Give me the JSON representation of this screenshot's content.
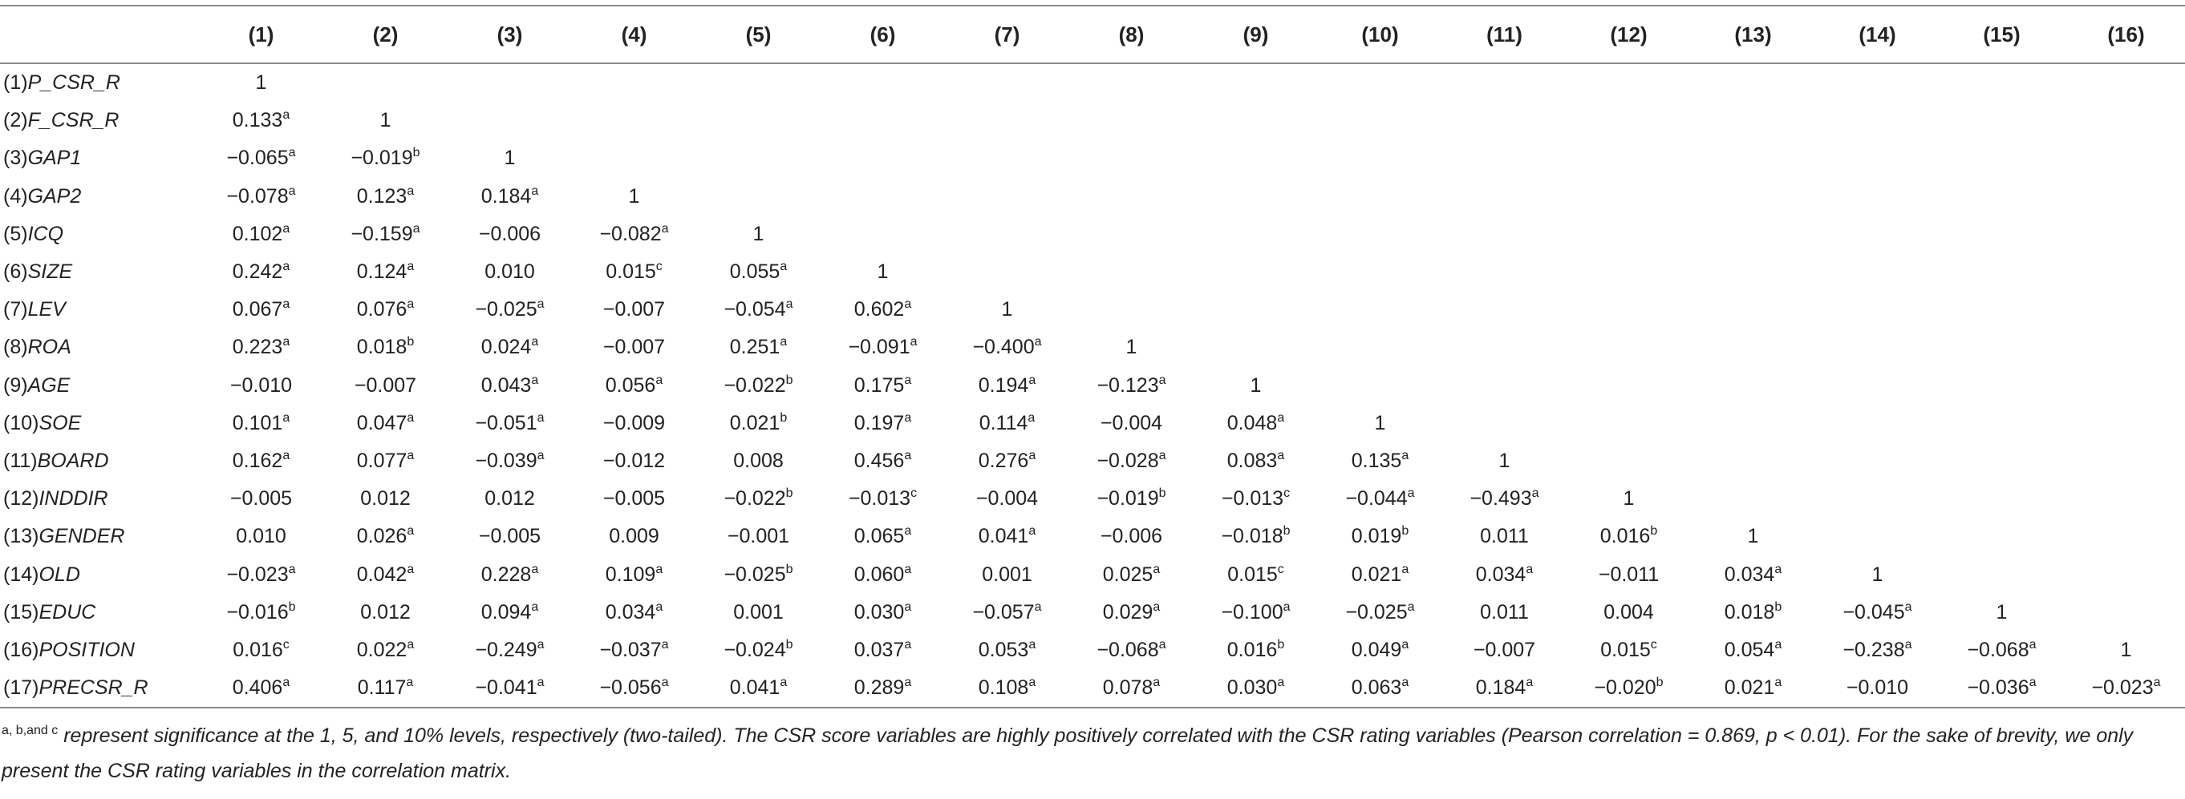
{
  "table": {
    "corner": "",
    "headers": [
      "(1)",
      "(2)",
      "(3)",
      "(4)",
      "(5)",
      "(6)",
      "(7)",
      "(8)",
      "(9)",
      "(10)",
      "(11)",
      "(12)",
      "(13)",
      "(14)",
      "(15)",
      "(16)"
    ],
    "rows": [
      {
        "num": "(1)",
        "name": "P_CSR_R",
        "cells": [
          [
            "1",
            ""
          ]
        ]
      },
      {
        "num": "(2)",
        "name": "F_CSR_R",
        "cells": [
          [
            "0.133",
            "a"
          ],
          [
            "1",
            ""
          ]
        ]
      },
      {
        "num": "(3)",
        "name": "GAP1",
        "cells": [
          [
            "−0.065",
            "a"
          ],
          [
            "−0.019",
            "b"
          ],
          [
            "1",
            ""
          ]
        ]
      },
      {
        "num": "(4)",
        "name": "GAP2",
        "cells": [
          [
            "−0.078",
            "a"
          ],
          [
            "0.123",
            "a"
          ],
          [
            "0.184",
            "a"
          ],
          [
            "1",
            ""
          ]
        ]
      },
      {
        "num": "(5)",
        "name": "ICQ",
        "cells": [
          [
            "0.102",
            "a"
          ],
          [
            "−0.159",
            "a"
          ],
          [
            "−0.006",
            ""
          ],
          [
            "−0.082",
            "a"
          ],
          [
            "1",
            ""
          ]
        ]
      },
      {
        "num": "(6)",
        "name": "SIZE",
        "cells": [
          [
            "0.242",
            "a"
          ],
          [
            "0.124",
            "a"
          ],
          [
            "0.010",
            ""
          ],
          [
            "0.015",
            "c"
          ],
          [
            "0.055",
            "a"
          ],
          [
            "1",
            ""
          ]
        ]
      },
      {
        "num": "(7)",
        "name": "LEV",
        "cells": [
          [
            "0.067",
            "a"
          ],
          [
            "0.076",
            "a"
          ],
          [
            "−0.025",
            "a"
          ],
          [
            "−0.007",
            ""
          ],
          [
            "−0.054",
            "a"
          ],
          [
            "0.602",
            "a"
          ],
          [
            "1",
            ""
          ]
        ]
      },
      {
        "num": "(8)",
        "name": "ROA",
        "cells": [
          [
            "0.223",
            "a"
          ],
          [
            "0.018",
            "b"
          ],
          [
            "0.024",
            "a"
          ],
          [
            "−0.007",
            ""
          ],
          [
            "0.251",
            "a"
          ],
          [
            "−0.091",
            "a"
          ],
          [
            "−0.400",
            "a"
          ],
          [
            "1",
            ""
          ]
        ]
      },
      {
        "num": "(9)",
        "name": "AGE",
        "cells": [
          [
            "−0.010",
            ""
          ],
          [
            "−0.007",
            ""
          ],
          [
            "0.043",
            "a"
          ],
          [
            "0.056",
            "a"
          ],
          [
            "−0.022",
            "b"
          ],
          [
            "0.175",
            "a"
          ],
          [
            "0.194",
            "a"
          ],
          [
            "−0.123",
            "a"
          ],
          [
            "1",
            ""
          ]
        ]
      },
      {
        "num": "(10)",
        "name": "SOE",
        "cells": [
          [
            "0.101",
            "a"
          ],
          [
            "0.047",
            "a"
          ],
          [
            "−0.051",
            "a"
          ],
          [
            "−0.009",
            ""
          ],
          [
            "0.021",
            "b"
          ],
          [
            "0.197",
            "a"
          ],
          [
            "0.114",
            "a"
          ],
          [
            "−0.004",
            ""
          ],
          [
            "0.048",
            "a"
          ],
          [
            "1",
            ""
          ]
        ]
      },
      {
        "num": "(11)",
        "name": "BOARD",
        "cells": [
          [
            "0.162",
            "a"
          ],
          [
            "0.077",
            "a"
          ],
          [
            "−0.039",
            "a"
          ],
          [
            "−0.012",
            ""
          ],
          [
            "0.008",
            ""
          ],
          [
            "0.456",
            "a"
          ],
          [
            "0.276",
            "a"
          ],
          [
            "−0.028",
            "a"
          ],
          [
            "0.083",
            "a"
          ],
          [
            "0.135",
            "a"
          ],
          [
            "1",
            ""
          ]
        ]
      },
      {
        "num": "(12)",
        "name": "INDDIR",
        "cells": [
          [
            "−0.005",
            ""
          ],
          [
            "0.012",
            ""
          ],
          [
            "0.012",
            ""
          ],
          [
            "−0.005",
            ""
          ],
          [
            "−0.022",
            "b"
          ],
          [
            "−0.013",
            "c"
          ],
          [
            "−0.004",
            ""
          ],
          [
            "−0.019",
            "b"
          ],
          [
            "−0.013",
            "c"
          ],
          [
            "−0.044",
            "a"
          ],
          [
            "−0.493",
            "a"
          ],
          [
            "1",
            ""
          ]
        ]
      },
      {
        "num": "(13)",
        "name": "GENDER",
        "cells": [
          [
            "0.010",
            ""
          ],
          [
            "0.026",
            "a"
          ],
          [
            "−0.005",
            ""
          ],
          [
            "0.009",
            ""
          ],
          [
            "−0.001",
            ""
          ],
          [
            "0.065",
            "a"
          ],
          [
            "0.041",
            "a"
          ],
          [
            "−0.006",
            ""
          ],
          [
            "−0.018",
            "b"
          ],
          [
            "0.019",
            "b"
          ],
          [
            "0.011",
            ""
          ],
          [
            "0.016",
            "b"
          ],
          [
            "1",
            ""
          ]
        ]
      },
      {
        "num": "(14)",
        "name": "OLD",
        "cells": [
          [
            "−0.023",
            "a"
          ],
          [
            "0.042",
            "a"
          ],
          [
            "0.228",
            "a"
          ],
          [
            "0.109",
            "a"
          ],
          [
            "−0.025",
            "b"
          ],
          [
            "0.060",
            "a"
          ],
          [
            "0.001",
            ""
          ],
          [
            "0.025",
            "a"
          ],
          [
            "0.015",
            "c"
          ],
          [
            "0.021",
            "a"
          ],
          [
            "0.034",
            "a"
          ],
          [
            "−0.011",
            ""
          ],
          [
            "0.034",
            "a"
          ],
          [
            "1",
            ""
          ]
        ]
      },
      {
        "num": "(15)",
        "name": "EDUC",
        "cells": [
          [
            "−0.016",
            "b"
          ],
          [
            "0.012",
            ""
          ],
          [
            "0.094",
            "a"
          ],
          [
            "0.034",
            "a"
          ],
          [
            "0.001",
            ""
          ],
          [
            "0.030",
            "a"
          ],
          [
            "−0.057",
            "a"
          ],
          [
            "0.029",
            "a"
          ],
          [
            "−0.100",
            "a"
          ],
          [
            "−0.025",
            "a"
          ],
          [
            "0.011",
            ""
          ],
          [
            "0.004",
            ""
          ],
          [
            "0.018",
            "b"
          ],
          [
            "−0.045",
            "a"
          ],
          [
            "1",
            ""
          ]
        ]
      },
      {
        "num": "(16)",
        "name": "POSITION",
        "cells": [
          [
            "0.016",
            "c"
          ],
          [
            "0.022",
            "a"
          ],
          [
            "−0.249",
            "a"
          ],
          [
            "−0.037",
            "a"
          ],
          [
            "−0.024",
            "b"
          ],
          [
            "0.037",
            "a"
          ],
          [
            "0.053",
            "a"
          ],
          [
            "−0.068",
            "a"
          ],
          [
            "0.016",
            "b"
          ],
          [
            "0.049",
            "a"
          ],
          [
            "−0.007",
            ""
          ],
          [
            "0.015",
            "c"
          ],
          [
            "0.054",
            "a"
          ],
          [
            "−0.238",
            "a"
          ],
          [
            "−0.068",
            "a"
          ],
          [
            "1",
            ""
          ]
        ]
      },
      {
        "num": "(17)",
        "name": "PRECSR_R",
        "cells": [
          [
            "0.406",
            "a"
          ],
          [
            "0.117",
            "a"
          ],
          [
            "−0.041",
            "a"
          ],
          [
            "−0.056",
            "a"
          ],
          [
            "0.041",
            "a"
          ],
          [
            "0.289",
            "a"
          ],
          [
            "0.108",
            "a"
          ],
          [
            "0.078",
            "a"
          ],
          [
            "0.030",
            "a"
          ],
          [
            "0.063",
            "a"
          ],
          [
            "0.184",
            "a"
          ],
          [
            "−0.020",
            "b"
          ],
          [
            "0.021",
            "a"
          ],
          [
            "−0.010",
            ""
          ],
          [
            "−0.036",
            "a"
          ],
          [
            "−0.023",
            "a"
          ]
        ]
      }
    ]
  },
  "note": {
    "marks": "a, b,and c",
    "text": " represent significance at the 1, 5, and 10% levels, respectively (two-tailed). The CSR score variables are highly positively correlated with the CSR rating variables (Pearson correlation = 0.869, p < 0.01). For the sake of brevity, we only present the CSR rating variables in the correlation matrix."
  }
}
